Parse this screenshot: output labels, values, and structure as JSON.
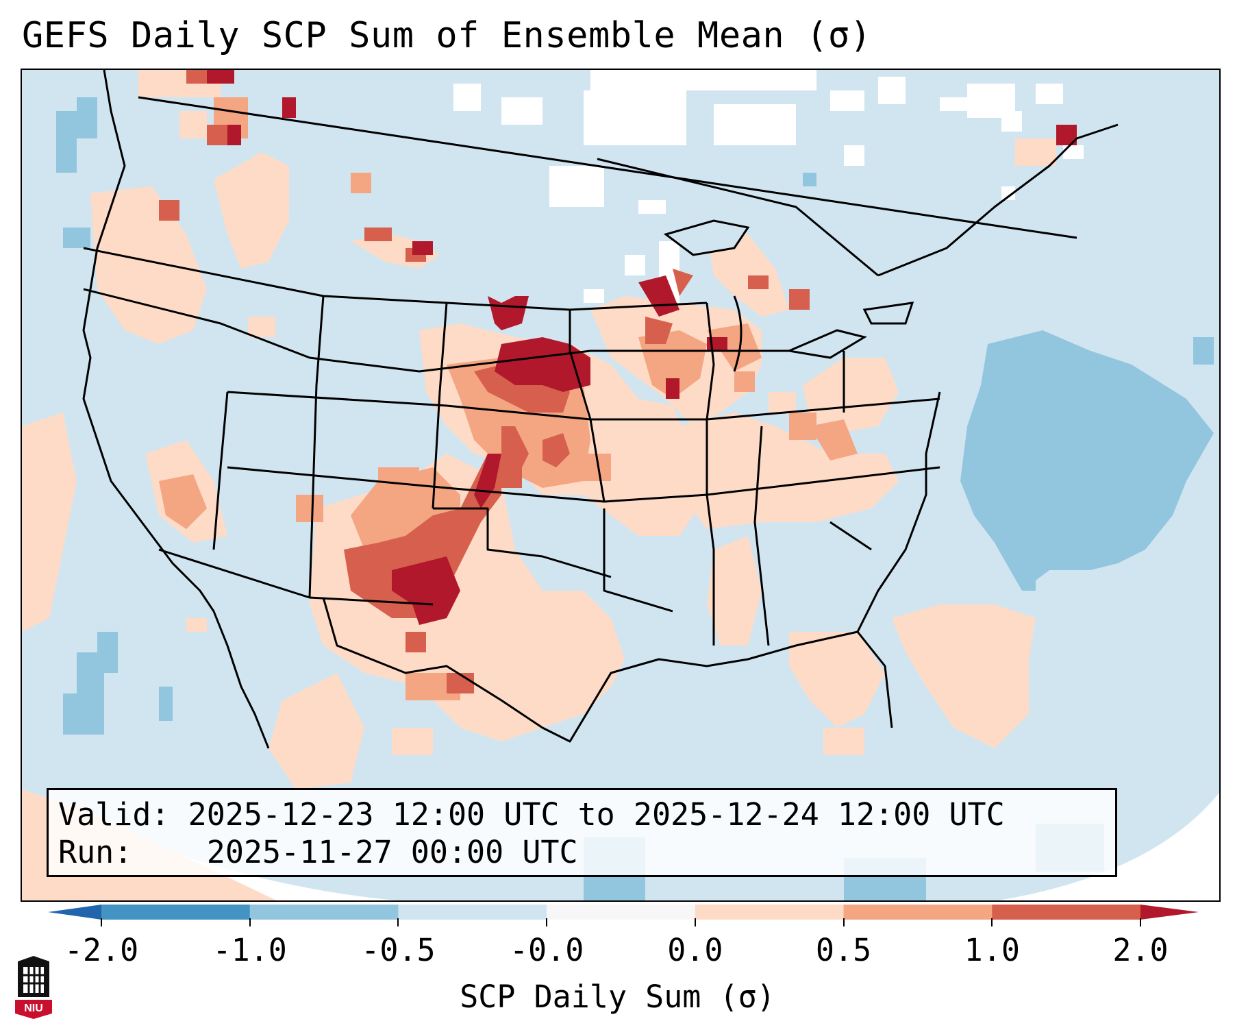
{
  "title": "GEFS Daily SCP Sum of Ensemble Mean (σ)",
  "info": {
    "valid_label": "Valid:",
    "valid_value": "2025-12-23 12:00 UTC to 2025-12-24 12:00 UTC",
    "run_label": "Run:",
    "run_value": "2025-11-27 00:00 UTC"
  },
  "colorbar": {
    "label": "SCP Daily Sum (σ)",
    "ticks": [
      "-2.0",
      "-1.0",
      "-0.5",
      "-0.0",
      "0.0",
      "0.5",
      "1.0",
      "2.0"
    ],
    "bins": [
      {
        "range": "-2.0 to -1.0",
        "color": "#4393c3"
      },
      {
        "range": "-1.0 to -0.5",
        "color": "#92c5de"
      },
      {
        "range": "-0.5 to -0.0",
        "color": "#d1e5f0"
      },
      {
        "range": "-0.0 to 0.0",
        "color": "#f7f7f7"
      },
      {
        "range": "0.0 to 0.5",
        "color": "#fddbc7"
      },
      {
        "range": "0.5 to 1.0",
        "color": "#f4a582"
      },
      {
        "range": "1.0 to 2.0",
        "color": "#d6604d"
      }
    ],
    "under_color": "#2166ac",
    "over_color": "#b2182b"
  },
  "map": {
    "projection": "Lambert conformal, CONUS",
    "background_color": "#d1e5f0",
    "features": [
      "state-boundaries",
      "coastlines",
      "country-borders"
    ],
    "highlight_regions": [
      {
        "name": "Nebraska / South Dakota max",
        "category": "over 2.0"
      },
      {
        "name": "Eastern New Mexico / West Texas max",
        "category": "over 2.0"
      },
      {
        "name": "Kansas / Oklahoma",
        "category": "1.0 to 2.0"
      },
      {
        "name": "Upper Mississippi Valley / Wisconsin",
        "category": "1.0 to 2.0"
      },
      {
        "name": "Western Atlantic",
        "category": "-1.0 to -0.5"
      }
    ]
  },
  "logo": {
    "text": "NIU",
    "color": "#c8102e"
  }
}
